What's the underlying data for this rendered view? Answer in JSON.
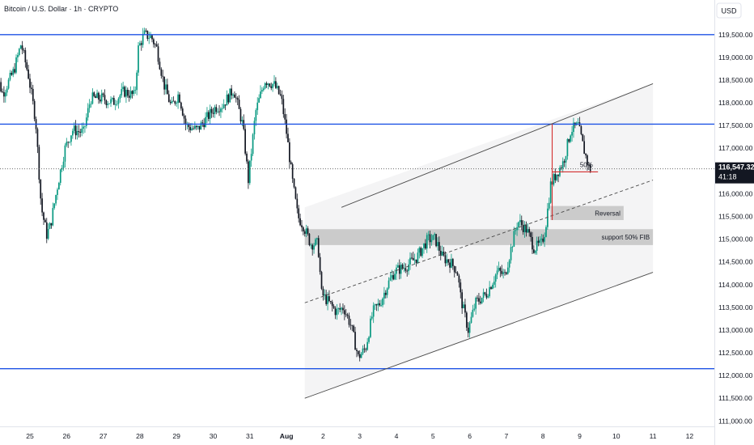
{
  "chart_data": {
    "type": "candlestick",
    "title": "Bitcoin / U.S. Dollar · 1h · CRYPTO",
    "currency_button": "USD",
    "y_ticks": [
      "119,500.00",
      "119,000.00",
      "118,500.00",
      "118,000.00",
      "117,500.00",
      "117,000.00",
      "116,500.00",
      "116,000.00",
      "115,500.00",
      "115,000.00",
      "114,500.00",
      "114,000.00",
      "113,500.00",
      "113,000.00",
      "112,500.00",
      "112,000.00",
      "111,500.00",
      "111,000.00"
    ],
    "y_tick_values": [
      119500,
      119000,
      118500,
      118000,
      117500,
      117000,
      116500,
      116000,
      115500,
      115000,
      114500,
      114000,
      113500,
      113000,
      112500,
      112000,
      111500,
      111000
    ],
    "x_ticks": [
      {
        "label": "25",
        "day": 25,
        "bold": false
      },
      {
        "label": "26",
        "day": 26,
        "bold": false
      },
      {
        "label": "27",
        "day": 27,
        "bold": false
      },
      {
        "label": "28",
        "day": 28,
        "bold": false
      },
      {
        "label": "29",
        "day": 29,
        "bold": false
      },
      {
        "label": "30",
        "day": 30,
        "bold": false
      },
      {
        "label": "31",
        "day": 31,
        "bold": false
      },
      {
        "label": "Aug",
        "day": 32,
        "bold": true
      },
      {
        "label": "2",
        "day": 33,
        "bold": false
      },
      {
        "label": "3",
        "day": 34,
        "bold": false
      },
      {
        "label": "4",
        "day": 35,
        "bold": false
      },
      {
        "label": "5",
        "day": 36,
        "bold": false
      },
      {
        "label": "6",
        "day": 37,
        "bold": false
      },
      {
        "label": "7",
        "day": 38,
        "bold": false
      },
      {
        "label": "8",
        "day": 39,
        "bold": false
      },
      {
        "label": "9",
        "day": 40,
        "bold": false
      },
      {
        "label": "10",
        "day": 41,
        "bold": false
      },
      {
        "label": "11",
        "day": 42,
        "bold": false
      },
      {
        "label": "12",
        "day": 43,
        "bold": false
      }
    ],
    "ylim": [
      110900,
      120100
    ],
    "current_price": {
      "value": 116547.32,
      "label": "116,547.32",
      "countdown": "41:18"
    },
    "horizontal_levels": [
      119500,
      117530,
      112150
    ],
    "channel": {
      "upper": [
        {
          "day": 33.5,
          "price": 115700
        },
        {
          "day": 42,
          "price": 118420
        }
      ],
      "middle": [
        {
          "day": 32.5,
          "price": 113600
        },
        {
          "day": 42,
          "price": 116300
        }
      ],
      "lower": [
        {
          "day": 32.5,
          "price": 111500
        },
        {
          "day": 42,
          "price": 114270
        }
      ]
    },
    "zones": [
      {
        "label": "Reversal",
        "day_start": 39.2,
        "day_end": 41.2,
        "top": 115730,
        "bottom": 115420
      },
      {
        "label": "support 50% FIB",
        "day_start": 32.5,
        "day_end": 42,
        "top": 115220,
        "bottom": 114870
      }
    ],
    "fib_marker": {
      "label": "50%",
      "day_start": 39.25,
      "day_end": 40.5,
      "price": 116480,
      "vertical_top": 117530,
      "vertical_bottom": 115420
    },
    "candles_path": [
      [
        24.0,
        118900
      ],
      [
        24.3,
        118200
      ],
      [
        24.6,
        118700
      ],
      [
        24.8,
        119300
      ],
      [
        25.0,
        118600
      ],
      [
        25.2,
        117600
      ],
      [
        25.35,
        115700
      ],
      [
        25.5,
        115100
      ],
      [
        25.6,
        115300
      ],
      [
        25.8,
        116200
      ],
      [
        26.0,
        117000
      ],
      [
        26.2,
        117400
      ],
      [
        26.5,
        117350
      ],
      [
        26.7,
        118100
      ],
      [
        27.0,
        118100
      ],
      [
        27.3,
        118000
      ],
      [
        27.6,
        118250
      ],
      [
        27.9,
        118150
      ],
      [
        28.0,
        119200
      ],
      [
        28.15,
        119500
      ],
      [
        28.35,
        119450
      ],
      [
        28.5,
        119200
      ],
      [
        28.7,
        118400
      ],
      [
        28.9,
        117900
      ],
      [
        29.1,
        118200
      ],
      [
        29.3,
        117500
      ],
      [
        29.6,
        117400
      ],
      [
        29.9,
        117700
      ],
      [
        30.1,
        117900
      ],
      [
        30.3,
        117950
      ],
      [
        30.6,
        118300
      ],
      [
        30.85,
        117500
      ],
      [
        31.0,
        116300
      ],
      [
        31.2,
        117800
      ],
      [
        31.45,
        118500
      ],
      [
        31.7,
        118400
      ],
      [
        31.9,
        118100
      ],
      [
        32.05,
        117300
      ],
      [
        32.2,
        116300
      ],
      [
        32.35,
        115500
      ],
      [
        32.5,
        115300
      ],
      [
        32.7,
        114900
      ],
      [
        32.9,
        114900
      ],
      [
        33.0,
        113800
      ],
      [
        33.2,
        113600
      ],
      [
        33.4,
        113400
      ],
      [
        33.6,
        113500
      ],
      [
        33.8,
        113100
      ],
      [
        34.0,
        112400
      ],
      [
        34.2,
        112600
      ],
      [
        34.4,
        113400
      ],
      [
        34.6,
        113600
      ],
      [
        34.8,
        114000
      ],
      [
        35.0,
        114300
      ],
      [
        35.3,
        114400
      ],
      [
        35.6,
        114600
      ],
      [
        35.9,
        115000
      ],
      [
        36.1,
        115000
      ],
      [
        36.3,
        114600
      ],
      [
        36.5,
        114500
      ],
      [
        36.7,
        114300
      ],
      [
        36.8,
        113700
      ],
      [
        37.0,
        113000
      ],
      [
        37.2,
        113600
      ],
      [
        37.5,
        113800
      ],
      [
        37.8,
        114300
      ],
      [
        38.0,
        114200
      ],
      [
        38.2,
        114900
      ],
      [
        38.35,
        115400
      ],
      [
        38.6,
        115200
      ],
      [
        38.8,
        114800
      ],
      [
        39.0,
        114900
      ],
      [
        39.1,
        115200
      ],
      [
        39.25,
        116200
      ],
      [
        39.45,
        116500
      ],
      [
        39.6,
        116700
      ],
      [
        39.8,
        117400
      ],
      [
        40.0,
        117500
      ],
      [
        40.15,
        117000
      ],
      [
        40.3,
        116547
      ]
    ]
  }
}
